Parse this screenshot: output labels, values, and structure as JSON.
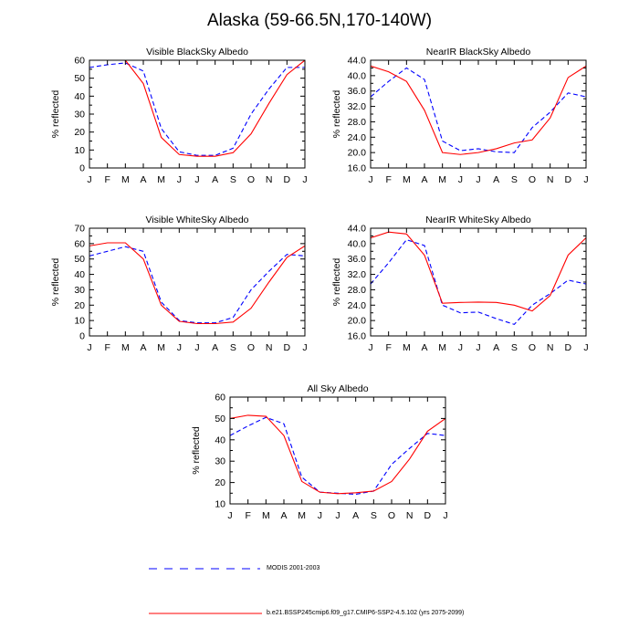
{
  "page_title": "Alaska (59-66.5N,170-140W)",
  "colors": {
    "model": "#ff0000",
    "obs": "#0000ff",
    "axis": "#000000"
  },
  "legend": {
    "obs_label": "MODIS 2001-2003",
    "model_label": "b.e21.BSSP245cmip6.f09_g17.CMIP6-SSP2-4.5.102 (yrs 2075-2099)"
  },
  "chart_data": [
    {
      "type": "line",
      "title": "Visible BlackSky Albedo",
      "ylabel": "% reflected",
      "ylim": [
        0,
        60
      ],
      "yticks": [
        "0",
        "10",
        "20",
        "30",
        "40",
        "50",
        "60"
      ],
      "categories": [
        "J",
        "F",
        "M",
        "A",
        "M",
        "J",
        "J",
        "A",
        "S",
        "O",
        "N",
        "D",
        "J"
      ],
      "series": [
        {
          "key": "obs",
          "values": [
            56,
            57.5,
            58.5,
            54,
            22,
            9,
            7,
            7,
            11,
            30,
            44,
            56,
            56
          ]
        },
        {
          "key": "model",
          "values": [
            60,
            60,
            60,
            47,
            17,
            7.5,
            6.5,
            6.5,
            8.5,
            19,
            36,
            52,
            60
          ]
        }
      ]
    },
    {
      "type": "line",
      "title": "NearIR BlackSky Albedo",
      "ylabel": "% reflected",
      "ylim": [
        16,
        44
      ],
      "yticks": [
        "16.0",
        "20.0",
        "24.0",
        "28.0",
        "32.0",
        "36.0",
        "40.0",
        "44.0"
      ],
      "categories": [
        "J",
        "F",
        "M",
        "A",
        "M",
        "J",
        "J",
        "A",
        "S",
        "O",
        "N",
        "D",
        "J"
      ],
      "series": [
        {
          "key": "obs",
          "values": [
            34.5,
            38.5,
            42,
            39,
            23,
            20.5,
            21,
            20.2,
            20,
            26.5,
            30.5,
            35.5,
            34.5
          ]
        },
        {
          "key": "model",
          "values": [
            42.5,
            41,
            38.5,
            31,
            20,
            19.5,
            20,
            21,
            22.5,
            23.3,
            29,
            39.5,
            42.5
          ]
        }
      ]
    },
    {
      "type": "line",
      "title": "Visible WhiteSky Albedo",
      "ylabel": "% reflected",
      "ylim": [
        0,
        70
      ],
      "yticks": [
        "0",
        "10",
        "20",
        "30",
        "40",
        "50",
        "60",
        "70"
      ],
      "categories": [
        "J",
        "F",
        "M",
        "A",
        "M",
        "J",
        "J",
        "A",
        "S",
        "O",
        "N",
        "D",
        "J"
      ],
      "series": [
        {
          "key": "obs",
          "values": [
            52,
            55,
            58,
            55,
            22,
            10,
            8.5,
            8.5,
            12,
            30,
            42,
            53,
            52
          ]
        },
        {
          "key": "model",
          "values": [
            58.5,
            60.5,
            60.5,
            50,
            20,
            9.5,
            8,
            8,
            9,
            18,
            35,
            51,
            58.5
          ]
        }
      ]
    },
    {
      "type": "line",
      "title": "NearIR WhiteSky Albedo",
      "ylabel": "% reflected",
      "ylim": [
        16,
        44
      ],
      "yticks": [
        "16.0",
        "20.0",
        "24.0",
        "28.0",
        "32.0",
        "36.0",
        "40.0",
        "44.0"
      ],
      "categories": [
        "J",
        "F",
        "M",
        "A",
        "M",
        "J",
        "J",
        "A",
        "S",
        "O",
        "N",
        "D",
        "J"
      ],
      "series": [
        {
          "key": "obs",
          "values": [
            29.5,
            35,
            41,
            39.5,
            24,
            22,
            22.2,
            20.5,
            19,
            24,
            27,
            30.5,
            29.5
          ]
        },
        {
          "key": "model",
          "values": [
            41.5,
            43,
            42.5,
            37,
            24.5,
            24.7,
            24.8,
            24.7,
            24,
            22.5,
            26.5,
            37,
            41.5
          ]
        }
      ]
    },
    {
      "type": "line",
      "title": "All Sky Albedo",
      "ylabel": "% reflected",
      "ylim": [
        10,
        60
      ],
      "yticks": [
        "10",
        "20",
        "30",
        "40",
        "50",
        "60"
      ],
      "categories": [
        "J",
        "F",
        "M",
        "A",
        "M",
        "J",
        "J",
        "A",
        "S",
        "O",
        "N",
        "D",
        "J"
      ],
      "series": [
        {
          "key": "obs",
          "values": [
            42,
            46.5,
            50.5,
            47.5,
            22.5,
            15.5,
            15,
            14.5,
            16,
            28.5,
            36,
            43,
            42
          ]
        },
        {
          "key": "model",
          "values": [
            50,
            51.5,
            51,
            42,
            20.5,
            15.5,
            14.8,
            15.2,
            16,
            20.5,
            31,
            44,
            50
          ]
        }
      ]
    }
  ]
}
